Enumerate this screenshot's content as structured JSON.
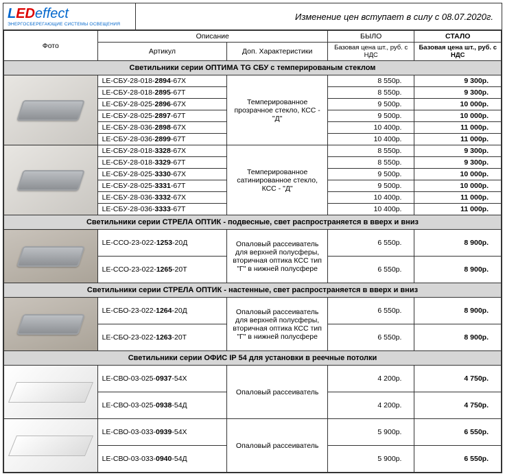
{
  "header": {
    "logo_led_l": "L",
    "logo_led_rest": "ED",
    "logo_effect": "effect",
    "logo_sub": "ЭНЕРГОСБЕРЕГАЮЩИЕ СИСТЕМЫ ОСВЕЩЕНИЯ",
    "notice": "Изменение цен вступает в силу с 08.07.2020г."
  },
  "columns": {
    "photo": "Фото",
    "desc_top": "Описание",
    "article": "Артикул",
    "extra": "Доп. Характеристики",
    "old_top": "БЫЛО",
    "old_sub": "Базовая цена шт., руб. с НДС",
    "new_top": "СТАЛО",
    "new_sub": "Базовая цена шт., руб. с НДС"
  },
  "sections": [
    {
      "title": "Светильники серии ОПТИМА TG СБУ с темперированым стеклом",
      "groups": [
        {
          "photo_class": "photo-cell",
          "desc": "Темперированное прозрачное стекло, КСС - \"Д\"",
          "rows": [
            {
              "art_pre": "LE-СБУ-28-018-",
              "art_b": "2894",
              "art_post": "-67Х",
              "old": "8 550р.",
              "new": "9 300р."
            },
            {
              "art_pre": "LE-СБУ-28-018-",
              "art_b": "2895",
              "art_post": "-67Т",
              "old": "8 550р.",
              "new": "9 300р."
            },
            {
              "art_pre": "LE-СБУ-28-025-",
              "art_b": "2896",
              "art_post": "-67Х",
              "old": "9 500р.",
              "new": "10 000р."
            },
            {
              "art_pre": "LE-СБУ-28-025-",
              "art_b": "2897",
              "art_post": "-67Т",
              "old": "9 500р.",
              "new": "10 000р."
            },
            {
              "art_pre": "LE-СБУ-28-036-",
              "art_b": "2898",
              "art_post": "-67Х",
              "old": "10 400р.",
              "new": "11 000р."
            },
            {
              "art_pre": "LE-СБУ-28-036-",
              "art_b": "2899",
              "art_post": "-67Т",
              "old": "10 400р.",
              "new": "11 000р."
            }
          ]
        },
        {
          "photo_class": "photo-cell",
          "desc": "Темперированное сатинированное стекло, КСС - \"Д\"",
          "rows": [
            {
              "art_pre": "LE-СБУ-28-018-",
              "art_b": "3328",
              "art_post": "-67Х",
              "old": "8 550р.",
              "new": "9 300р."
            },
            {
              "art_pre": "LE-СБУ-28-018-",
              "art_b": "3329",
              "art_post": "-67Т",
              "old": "8 550р.",
              "new": "9 300р."
            },
            {
              "art_pre": "LE-СБУ-28-025-",
              "art_b": "3330",
              "art_post": "-67Х",
              "old": "9 500р.",
              "new": "10 000р."
            },
            {
              "art_pre": "LE-СБУ-28-025-",
              "art_b": "3331",
              "art_post": "-67Т",
              "old": "9 500р.",
              "new": "10 000р."
            },
            {
              "art_pre": "LE-СБУ-28-036-",
              "art_b": "3332",
              "art_post": "-67Х",
              "old": "10 400р.",
              "new": "11 000р."
            },
            {
              "art_pre": "LE-СБУ-28-036-",
              "art_b": "3333",
              "art_post": "-67Т",
              "old": "10 400р.",
              "new": "11 000р."
            }
          ]
        }
      ]
    },
    {
      "title": "Светильники серии СТРЕЛА ОПТИК - подвесные, свет распространяется в вверх и вниз",
      "groups": [
        {
          "photo_class": "photo-cell2",
          "desc": "Опаловый рассеиватель для верхней полусферы, вторичная оптика КСС тип \"Г\" в нижней полусфере",
          "rows": [
            {
              "art_pre": "LE-ССО-23-022-",
              "art_b": "1253",
              "art_post": "-20Д",
              "old": "6 550р.",
              "new": "8 900р."
            },
            {
              "art_pre": "LE-ССО-23-022-",
              "art_b": "1265",
              "art_post": "-20Т",
              "old": "6 550р.",
              "new": "8 900р."
            }
          ]
        }
      ]
    },
    {
      "title": "Светильники серии СТРЕЛА ОПТИК - настенные, свет распространяется в вверх и вниз",
      "groups": [
        {
          "photo_class": "photo-cell2",
          "desc": "Опаловый рассеиватель для верхней полусферы, вторичная оптика КСС тип \"Г\" в нижней полусфере",
          "rows": [
            {
              "art_pre": "LE-СБО-23-022-",
              "art_b": "1264",
              "art_post": "-20Д",
              "old": "6 550р.",
              "new": "8 900р."
            },
            {
              "art_pre": "LE-СБО-23-022-",
              "art_b": "1263",
              "art_post": "-20Т",
              "old": "6 550р.",
              "new": "8 900р."
            }
          ]
        }
      ]
    },
    {
      "title": "Светильники серии ОФИС IP 54 для установки в реечные потолки",
      "groups": [
        {
          "photo_class": "photo-panel",
          "desc": "Опаловый рассеиватель",
          "rows": [
            {
              "art_pre": "LE-СВО-03-025-",
              "art_b": "0937",
              "art_post": "-54Х",
              "old": "4 200р.",
              "new": "4 750р."
            },
            {
              "art_pre": "LE-СВО-03-025-",
              "art_b": "0938",
              "art_post": "-54Д",
              "old": "4 200р.",
              "new": "4 750р."
            }
          ]
        },
        {
          "photo_class": "photo-panel",
          "desc": "Опаловый рассеиватель",
          "rows": [
            {
              "art_pre": "LE-СВО-03-033-",
              "art_b": "0939",
              "art_post": "-54Х",
              "old": "5 900р.",
              "new": "6 550р."
            },
            {
              "art_pre": "LE-СВО-03-033-",
              "art_b": "0940",
              "art_post": "-54Д",
              "old": "5 900р.",
              "new": "6 550р."
            }
          ]
        }
      ]
    }
  ]
}
